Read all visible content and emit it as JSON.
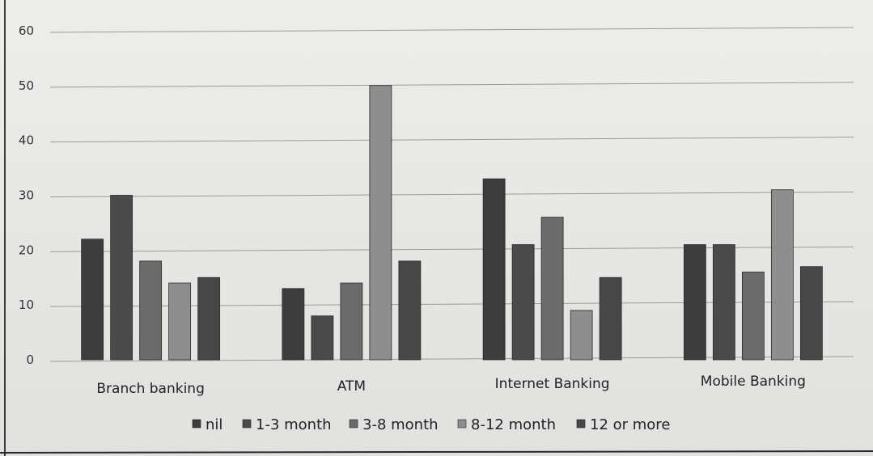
{
  "chart_data": {
    "type": "bar",
    "title": "",
    "xlabel": "",
    "ylabel": "",
    "ylim": [
      0,
      60
    ],
    "yticks": [
      "0",
      "10",
      "20",
      "30",
      "40",
      "50",
      "60"
    ],
    "grid": true,
    "legend_position": "bottom",
    "categories": [
      "Branch banking",
      "ATM",
      "Internet Banking",
      "Mobile Banking"
    ],
    "series": [
      {
        "name": "nil",
        "values": [
          22,
          13,
          33,
          21
        ],
        "color": "#3d3d3d"
      },
      {
        "name": "1-3 month",
        "values": [
          30,
          8,
          21,
          21
        ],
        "color": "#4a4a4a"
      },
      {
        "name": "3-8 month",
        "values": [
          18,
          14,
          26,
          16
        ],
        "color": "#6b6b6b"
      },
      {
        "name": "8-12 month",
        "values": [
          14,
          50,
          9,
          31
        ],
        "color": "#8e8e8e"
      },
      {
        "name": "12 or more",
        "values": [
          15,
          18,
          15,
          17
        ],
        "color": "#474747"
      }
    ]
  }
}
